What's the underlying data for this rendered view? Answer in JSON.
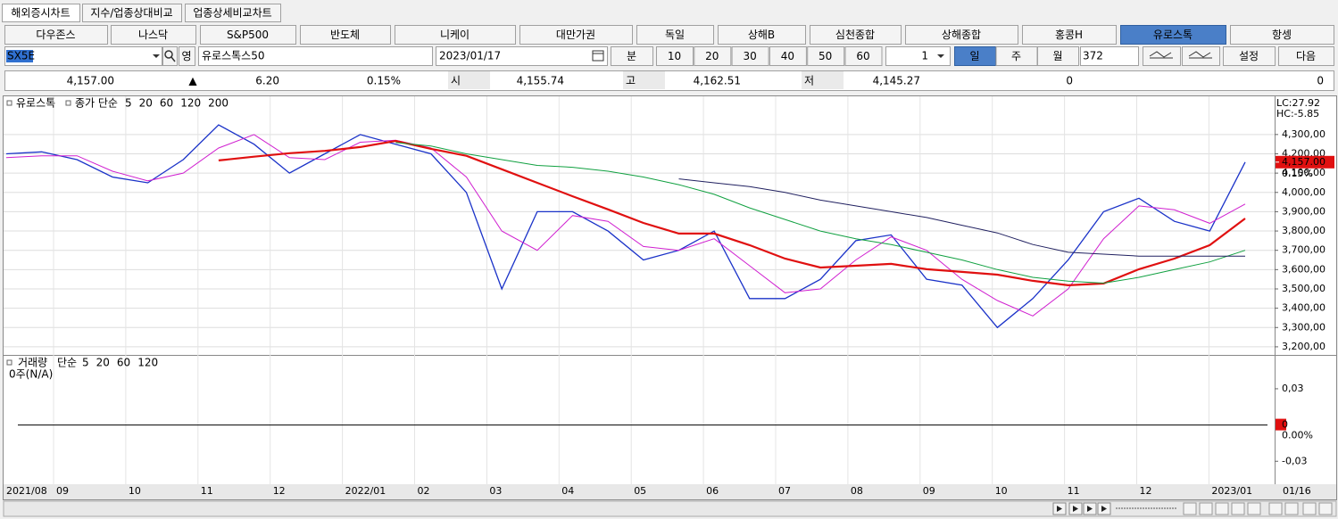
{
  "ui": {
    "tabs": [
      "해외증시차트",
      "지수/업종상대비교",
      "업종상세비교차트"
    ],
    "selected_tab": 0,
    "markets": [
      "다우존스",
      "나스닥",
      "S&P500",
      "반도체",
      "니케이",
      "대만가권",
      "독일",
      "상해B",
      "심천종합",
      "상해종합",
      "홍콩H",
      "유로스톡",
      "항셍"
    ],
    "selected_market": 11,
    "toolbar": {
      "code": "SX5E",
      "lang": "영",
      "name": "유로스톡스50",
      "date": "2023/01/17",
      "minute": "분",
      "minutes": [
        10,
        20,
        30,
        40,
        50,
        60
      ],
      "unit": 1,
      "periods": [
        "일",
        "주",
        "월"
      ],
      "selected_period": 0,
      "count": 372,
      "settings": "설정",
      "next": "다음"
    },
    "quote": {
      "price": "4,157.00",
      "arrow": "▲",
      "change": "6.20",
      "change_pct": "0.15%",
      "open_label": "시",
      "open": "4,155.74",
      "high_label": "고",
      "high": "4,162.51",
      "low_label": "저",
      "low": "4,145.27",
      "volume": 0,
      "amount": 0
    }
  },
  "chart_data": {
    "type": "line",
    "title": "유로스톡",
    "ma_label": "종가 단순",
    "lc": "LC:27.92",
    "hc": "HC:-5.85",
    "ylim": [
      3158,
      4498
    ],
    "yticks": [
      {
        "value": 3200,
        "label": "3,200,00"
      },
      {
        "value": 3300,
        "label": "3,300,00"
      },
      {
        "value": 3400,
        "label": "3,400,00"
      },
      {
        "value": 3500,
        "label": "3,500,00"
      },
      {
        "value": 3600,
        "label": "3,600,00"
      },
      {
        "value": 3700,
        "label": "3,700,00"
      },
      {
        "value": 3800,
        "label": "3,800,00"
      },
      {
        "value": 3900,
        "label": "3,900,00"
      },
      {
        "value": 4000,
        "label": "4,000,00"
      },
      {
        "value": 4100,
        "label": "4,100,00"
      },
      {
        "value": 4200,
        "label": "4,200,00"
      },
      {
        "value": 4300,
        "label": "4,300,00"
      }
    ],
    "grid": true,
    "last_price": {
      "value": 4157,
      "label": "4,157.00"
    },
    "last_change_label": "0.15%",
    "x_labels": [
      "2021/08",
      "09",
      "10",
      "11",
      "12",
      "2022/01",
      "02",
      "03",
      "04",
      "05",
      "06",
      "07",
      "08",
      "09",
      "10",
      "11",
      "12",
      "2023/01"
    ],
    "x_end_label": "01/16",
    "series": [
      {
        "name": "5",
        "color": "#1a32c8",
        "width": 1.3,
        "values": [
          4200,
          4210,
          4170,
          4080,
          4050,
          4170,
          4350,
          4250,
          4100,
          4200,
          4300,
          4250,
          4200,
          4000,
          3500,
          3900,
          3900,
          3800,
          3650,
          3700,
          3800,
          3450,
          3450,
          3550,
          3750,
          3780,
          3550,
          3520,
          3300,
          3450,
          3650,
          3900,
          3970,
          3850,
          3800,
          4157
        ]
      },
      {
        "name": "20",
        "color": "#d020d0",
        "width": 1,
        "values": [
          4180,
          4190,
          4190,
          4110,
          4060,
          4100,
          4230,
          4300,
          4180,
          4170,
          4260,
          4270,
          4230,
          4080,
          3800,
          3700,
          3880,
          3850,
          3720,
          3700,
          3760,
          3620,
          3480,
          3500,
          3650,
          3770,
          3700,
          3550,
          3440,
          3360,
          3500,
          3760,
          3930,
          3910,
          3840,
          3940
        ]
      },
      {
        "name": "60",
        "color": "#e01010",
        "width": 2.2,
        "values": [
          null,
          null,
          null,
          null,
          null,
          null,
          4166,
          4185,
          4203,
          4215,
          4235,
          4267,
          4226,
          4190,
          4120,
          4050,
          3980,
          3912,
          3842,
          3787,
          3787,
          3727,
          3657,
          3611,
          3620,
          3630,
          3602,
          3588,
          3574,
          3542,
          3519,
          3528,
          3602,
          3657,
          3727,
          3865
        ]
      },
      {
        "name": "120",
        "color": "#10a040",
        "width": 1,
        "values": [
          null,
          null,
          null,
          null,
          null,
          null,
          null,
          null,
          null,
          null,
          null,
          4258,
          4240,
          4200,
          4170,
          4140,
          4130,
          4110,
          4080,
          4040,
          3990,
          3920,
          3860,
          3800,
          3760,
          3730,
          3690,
          3650,
          3600,
          3560,
          3540,
          3530,
          3560,
          3600,
          3640,
          3700
        ]
      },
      {
        "name": "200",
        "color": "#202060",
        "width": 1,
        "values": [
          null,
          null,
          null,
          null,
          null,
          null,
          null,
          null,
          null,
          null,
          null,
          null,
          null,
          null,
          null,
          null,
          null,
          null,
          null,
          4070,
          4050,
          4030,
          4000,
          3960,
          3930,
          3900,
          3870,
          3830,
          3790,
          3730,
          3690,
          3680,
          3670,
          3670,
          3670,
          3670
        ]
      }
    ],
    "volume": {
      "title": "거래량",
      "ma_label": "단순",
      "note": "0주(N/A)",
      "ylim": [
        -0.049,
        0.058
      ],
      "yticks": [
        {
          "value": 0.03,
          "label": "0,03"
        },
        {
          "value": -0.03,
          "label": "-0,03"
        }
      ],
      "last_value": 0,
      "last_change_label": "0.00%",
      "ma": [
        {
          "name": "5",
          "color": "#1a32c8"
        },
        {
          "name": "20",
          "color": "#e01010"
        },
        {
          "name": "60",
          "color": "#10a040"
        },
        {
          "name": "120",
          "color": "#000000"
        }
      ]
    }
  }
}
